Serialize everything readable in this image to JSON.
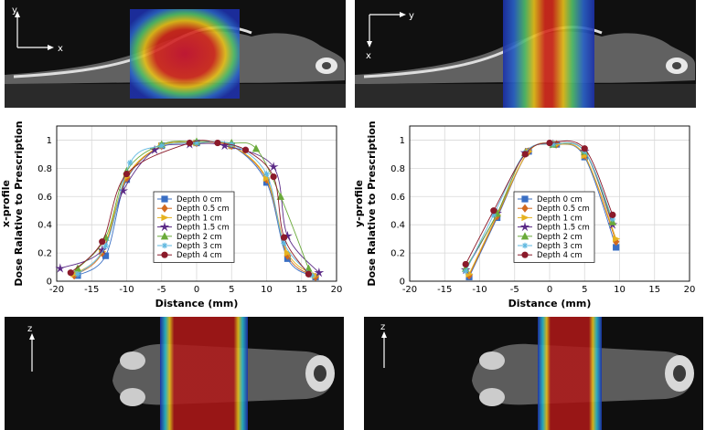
{
  "ct_panels": {
    "xy_left": {
      "axis_a": "y",
      "axis_b": "x"
    },
    "xy_right": {
      "axis_a": "y",
      "axis_b": "x"
    },
    "z_left": {
      "axis": "z"
    },
    "z_right": {
      "axis": "z"
    }
  },
  "colors": {
    "depth_0": "#3a6fc4",
    "depth_0_5": "#d2691e",
    "depth_1": "#e6b320",
    "depth_1_5": "#5b2a86",
    "depth_2": "#6aaa3a",
    "depth_3": "#5fb8e0",
    "depth_4": "#8b1a2a"
  },
  "chart_data": [
    {
      "type": "line",
      "ylabel": "Dose Ralative to Prescription",
      "ylabel_prefix": "x-profile",
      "xlabel": "Distance (mm)",
      "xlim": [
        -20,
        20
      ],
      "ylim": [
        0,
        1.1
      ],
      "xticks": [
        "-20",
        "-15",
        "-10",
        "-5",
        "0",
        "5",
        "10",
        "15",
        "20"
      ],
      "yticks": [
        "0",
        "0.2",
        "0.4",
        "0.6",
        "0.8",
        "1"
      ],
      "grid": true,
      "legend_position": "center",
      "series": [
        {
          "name": "Depth 0 cm",
          "marker": "square",
          "color_key": "depth_0",
          "x": [
            -17,
            -13,
            -10,
            -5,
            0,
            5,
            10,
            13,
            17
          ],
          "y": [
            0.04,
            0.18,
            0.72,
            0.96,
            0.98,
            0.96,
            0.7,
            0.16,
            0.03
          ]
        },
        {
          "name": "Depth 0.5 cm",
          "marker": "diamond",
          "color_key": "depth_0_5",
          "x": [
            -17.5,
            -13.5,
            -10,
            -5,
            0,
            5,
            10,
            13,
            17
          ],
          "y": [
            0.04,
            0.2,
            0.73,
            0.96,
            0.98,
            0.96,
            0.72,
            0.18,
            0.03
          ]
        },
        {
          "name": "Depth 1 cm",
          "marker": "triangle-right",
          "color_key": "depth_1",
          "x": [
            -17.5,
            -13.5,
            -10,
            -5,
            0,
            5,
            10,
            13,
            17
          ],
          "y": [
            0.05,
            0.21,
            0.74,
            0.96,
            0.98,
            0.96,
            0.73,
            0.2,
            0.04
          ]
        },
        {
          "name": "Depth 1.5 cm",
          "marker": "star",
          "color_key": "depth_1_5",
          "x": [
            -19.5,
            -13.5,
            -10.5,
            -6,
            -1,
            4,
            11,
            13,
            17.5
          ],
          "y": [
            0.09,
            0.22,
            0.64,
            0.93,
            0.97,
            0.96,
            0.81,
            0.32,
            0.06
          ]
        },
        {
          "name": "Depth 2 cm",
          "marker": "triangle-up",
          "color_key": "depth_2",
          "x": [
            -17,
            -13,
            -10,
            -5,
            0,
            5,
            8.5,
            12,
            16
          ],
          "y": [
            0.09,
            0.31,
            0.78,
            0.97,
            0.99,
            0.98,
            0.94,
            0.6,
            0.09
          ]
        },
        {
          "name": "Depth 3 cm",
          "marker": "asterisk",
          "color_key": "depth_3",
          "x": [
            -17,
            -13,
            -9.5,
            -5,
            0,
            5,
            10,
            12.5,
            16.5
          ],
          "y": [
            0.05,
            0.25,
            0.84,
            0.96,
            0.98,
            0.97,
            0.76,
            0.27,
            0.04
          ]
        },
        {
          "name": "Depth 4 cm",
          "marker": "circle",
          "color_key": "depth_4",
          "x": [
            -18,
            -13.5,
            -10,
            -1,
            3,
            7,
            11,
            12.5,
            16
          ],
          "y": [
            0.06,
            0.28,
            0.76,
            0.98,
            0.98,
            0.93,
            0.74,
            0.31,
            0.05
          ]
        }
      ]
    },
    {
      "type": "line",
      "ylabel": "Dose Ralative to Prescription",
      "ylabel_prefix": "y-profile",
      "xlabel": "Distance (mm)",
      "xlim": [
        -20,
        20
      ],
      "ylim": [
        0,
        1.1
      ],
      "xticks": [
        "-20",
        "-15",
        "-10",
        "-5",
        "0",
        "5",
        "10",
        "15",
        "20"
      ],
      "yticks": [
        "0",
        "0.2",
        "0.4",
        "0.6",
        "0.8",
        "1"
      ],
      "grid": true,
      "legend_position": "center-left",
      "series": [
        {
          "name": "Depth 0 cm",
          "marker": "square",
          "color_key": "depth_0",
          "x": [
            -11.5,
            -7.5,
            -3,
            1,
            5,
            9.5
          ],
          "y": [
            0.03,
            0.45,
            0.92,
            0.97,
            0.88,
            0.24
          ]
        },
        {
          "name": "Depth 0.5 cm",
          "marker": "diamond",
          "color_key": "depth_0_5",
          "x": [
            -11.5,
            -7.5,
            -3,
            1,
            5,
            9.5
          ],
          "y": [
            0.04,
            0.46,
            0.92,
            0.97,
            0.89,
            0.28
          ]
        },
        {
          "name": "Depth 1 cm",
          "marker": "triangle-right",
          "color_key": "depth_1",
          "x": [
            -11.5,
            -7.5,
            -3,
            1,
            5,
            9.5
          ],
          "y": [
            0.05,
            0.47,
            0.92,
            0.97,
            0.89,
            0.3
          ]
        },
        {
          "name": "Depth 1.5 cm",
          "marker": "star",
          "color_key": "depth_1_5",
          "x": [
            -12,
            -7.5,
            -3.5,
            0.5,
            5,
            9
          ],
          "y": [
            0.08,
            0.48,
            0.91,
            0.97,
            0.92,
            0.4
          ]
        },
        {
          "name": "Depth 2 cm",
          "marker": "triangle-up",
          "color_key": "depth_2",
          "x": [
            -12,
            -7.5,
            -3.5,
            0.5,
            5,
            9
          ],
          "y": [
            0.09,
            0.48,
            0.91,
            0.97,
            0.92,
            0.42
          ]
        },
        {
          "name": "Depth 3 cm",
          "marker": "asterisk",
          "color_key": "depth_3",
          "x": [
            -12,
            -8,
            -3.5,
            0.5,
            5,
            9
          ],
          "y": [
            0.07,
            0.47,
            0.91,
            0.97,
            0.92,
            0.44
          ]
        },
        {
          "name": "Depth 4 cm",
          "marker": "circle",
          "color_key": "depth_4",
          "x": [
            -12,
            -8,
            -3.5,
            0,
            5,
            9
          ],
          "y": [
            0.12,
            0.5,
            0.9,
            0.98,
            0.94,
            0.47
          ]
        }
      ]
    }
  ]
}
